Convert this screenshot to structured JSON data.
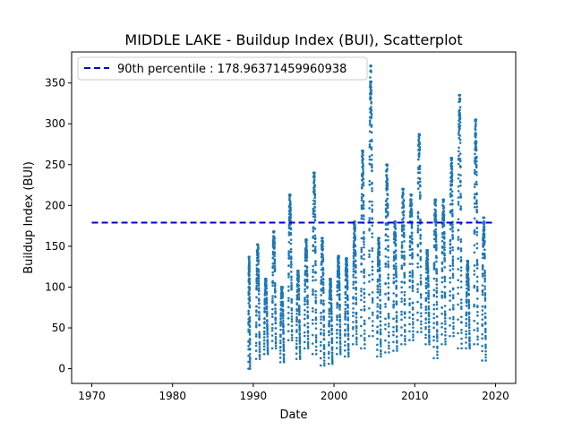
{
  "chart_data": {
    "type": "scatter",
    "title": "MIDDLE LAKE - Buildup Index (BUI), Scatterplot",
    "xlabel": "Date",
    "ylabel": "Buildup Index (BUI)",
    "xlim": [
      1967.5,
      2022.5
    ],
    "ylim": [
      -18,
      388
    ],
    "x_ticks": [
      1970,
      1980,
      1990,
      2000,
      2010,
      2020
    ],
    "y_ticks": [
      0,
      50,
      100,
      150,
      200,
      250,
      300,
      350
    ],
    "grid": false,
    "legend": {
      "position": "top-left",
      "entries": [
        "90th percentile : 178.96371459960938"
      ]
    },
    "reference_line": {
      "label": "90th percentile : 178.96371459960938",
      "y": 178.96371459960938,
      "x": [
        1970,
        2020
      ],
      "color": "#0000cc",
      "style": "dashed"
    },
    "series": [
      {
        "color": "#1f77b4",
        "fire_seasons": [
          {
            "year": 1989,
            "start": 1989.4,
            "end": 1989.6,
            "min": 0,
            "max": 137
          },
          {
            "year": 1990,
            "start": 1990.35,
            "end": 1990.8,
            "min": 12,
            "max": 152
          },
          {
            "year": 1991,
            "start": 1991.35,
            "end": 1991.8,
            "min": 18,
            "max": 110
          },
          {
            "year": 1992,
            "start": 1992.35,
            "end": 1992.8,
            "min": 25,
            "max": 168
          },
          {
            "year": 1993,
            "start": 1993.35,
            "end": 1993.8,
            "min": 8,
            "max": 100
          },
          {
            "year": 1994,
            "start": 1994.35,
            "end": 1994.8,
            "min": 35,
            "max": 213
          },
          {
            "year": 1995,
            "start": 1995.35,
            "end": 1995.8,
            "min": 12,
            "max": 120
          },
          {
            "year": 1996,
            "start": 1996.35,
            "end": 1996.8,
            "min": 25,
            "max": 158
          },
          {
            "year": 1997,
            "start": 1997.35,
            "end": 1997.8,
            "min": 18,
            "max": 240
          },
          {
            "year": 1998,
            "start": 1998.35,
            "end": 1998.8,
            "min": 4,
            "max": 160
          },
          {
            "year": 1999,
            "start": 1999.35,
            "end": 1999.8,
            "min": 6,
            "max": 110
          },
          {
            "year": 2000,
            "start": 2000.35,
            "end": 2000.8,
            "min": 18,
            "max": 138
          },
          {
            "year": 2001,
            "start": 2001.35,
            "end": 2001.8,
            "min": 15,
            "max": 135
          },
          {
            "year": 2002,
            "start": 2002.35,
            "end": 2002.8,
            "min": 30,
            "max": 180
          },
          {
            "year": 2003,
            "start": 2003.35,
            "end": 2003.8,
            "min": 25,
            "max": 267
          },
          {
            "year": 2004,
            "start": 2004.35,
            "end": 2004.8,
            "min": 40,
            "max": 371
          },
          {
            "year": 2005,
            "start": 2005.35,
            "end": 2005.8,
            "min": 15,
            "max": 160
          },
          {
            "year": 2006,
            "start": 2006.35,
            "end": 2006.8,
            "min": 20,
            "max": 250
          },
          {
            "year": 2007,
            "start": 2007.35,
            "end": 2007.8,
            "min": 22,
            "max": 180
          },
          {
            "year": 2008,
            "start": 2008.35,
            "end": 2008.8,
            "min": 30,
            "max": 220
          },
          {
            "year": 2009,
            "start": 2009.35,
            "end": 2009.8,
            "min": 35,
            "max": 213
          },
          {
            "year": 2010,
            "start": 2010.35,
            "end": 2010.8,
            "min": 45,
            "max": 287
          },
          {
            "year": 2011,
            "start": 2011.35,
            "end": 2011.8,
            "min": 30,
            "max": 145
          },
          {
            "year": 2012,
            "start": 2012.35,
            "end": 2012.8,
            "min": 13,
            "max": 207
          },
          {
            "year": 2013,
            "start": 2013.35,
            "end": 2013.8,
            "min": 30,
            "max": 207
          },
          {
            "year": 2014,
            "start": 2014.35,
            "end": 2014.8,
            "min": 40,
            "max": 258
          },
          {
            "year": 2015,
            "start": 2015.35,
            "end": 2015.8,
            "min": 25,
            "max": 335
          },
          {
            "year": 2016,
            "start": 2016.35,
            "end": 2016.8,
            "min": 25,
            "max": 132
          },
          {
            "year": 2017,
            "start": 2017.35,
            "end": 2017.8,
            "min": 30,
            "max": 305
          },
          {
            "year": 2018,
            "start": 2018.35,
            "end": 2018.8,
            "min": 10,
            "max": 185
          }
        ]
      }
    ]
  }
}
